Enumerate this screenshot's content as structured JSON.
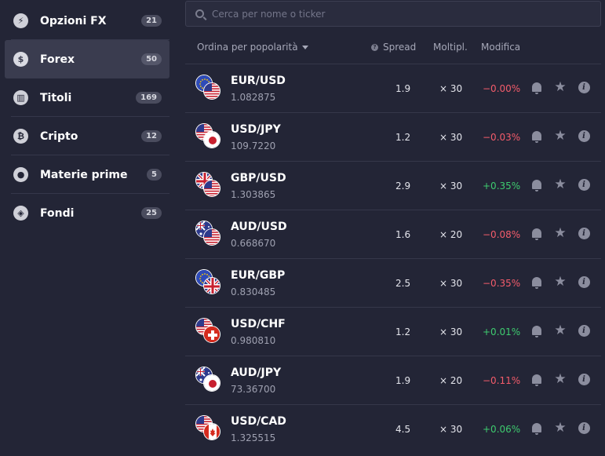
{
  "sidebar": {
    "items": [
      {
        "label": "Opzioni FX",
        "count": "21",
        "icon": "lightning-icon",
        "glyph": "⚡",
        "active": false
      },
      {
        "label": "Forex",
        "count": "50",
        "icon": "dollar-icon",
        "glyph": "$",
        "active": true
      },
      {
        "label": "Titoli",
        "count": "169",
        "icon": "bank-icon",
        "glyph": "▥",
        "active": false
      },
      {
        "label": "Cripto",
        "count": "12",
        "icon": "bitcoin-icon",
        "glyph": "₿",
        "active": false
      },
      {
        "label": "Materie prime",
        "count": "5",
        "icon": "drop-icon",
        "glyph": "●",
        "active": false
      },
      {
        "label": "Fondi",
        "count": "25",
        "icon": "cube-icon",
        "glyph": "◈",
        "active": false
      }
    ]
  },
  "search": {
    "placeholder": "Cerca per nome o ticker"
  },
  "header": {
    "sort_label": "Ordina per popolarità",
    "spread": "Spread",
    "multiplier": "Moltipl.",
    "change": "Modifica"
  },
  "colors": {
    "negative": "#f45c6b",
    "positive": "#3ecb6f",
    "accent_bg": "#3a3c4f"
  },
  "rows": [
    {
      "pair": "EUR/USD",
      "price": "1.082875",
      "spread": "1.9",
      "mult": "× 30",
      "change": "−0.00%",
      "dir": "neg",
      "flags": [
        "eu",
        "us"
      ]
    },
    {
      "pair": "USD/JPY",
      "price": "109.7220",
      "spread": "1.2",
      "mult": "× 30",
      "change": "−0.03%",
      "dir": "neg",
      "flags": [
        "us",
        "jp"
      ]
    },
    {
      "pair": "GBP/USD",
      "price": "1.303865",
      "spread": "2.9",
      "mult": "× 30",
      "change": "+0.35%",
      "dir": "pos",
      "flags": [
        "gb",
        "us"
      ]
    },
    {
      "pair": "AUD/USD",
      "price": "0.668670",
      "spread": "1.6",
      "mult": "× 20",
      "change": "−0.08%",
      "dir": "neg",
      "flags": [
        "au",
        "us"
      ]
    },
    {
      "pair": "EUR/GBP",
      "price": "0.830485",
      "spread": "2.5",
      "mult": "× 30",
      "change": "−0.35%",
      "dir": "neg",
      "flags": [
        "eu",
        "gb"
      ]
    },
    {
      "pair": "USD/CHF",
      "price": "0.980810",
      "spread": "1.2",
      "mult": "× 30",
      "change": "+0.01%",
      "dir": "pos",
      "flags": [
        "us",
        "ch"
      ]
    },
    {
      "pair": "AUD/JPY",
      "price": "73.36700",
      "spread": "1.9",
      "mult": "× 20",
      "change": "−0.11%",
      "dir": "neg",
      "flags": [
        "au",
        "jp"
      ]
    },
    {
      "pair": "USD/CAD",
      "price": "1.325515",
      "spread": "4.5",
      "mult": "× 30",
      "change": "+0.06%",
      "dir": "pos",
      "flags": [
        "us",
        "ca"
      ]
    }
  ]
}
